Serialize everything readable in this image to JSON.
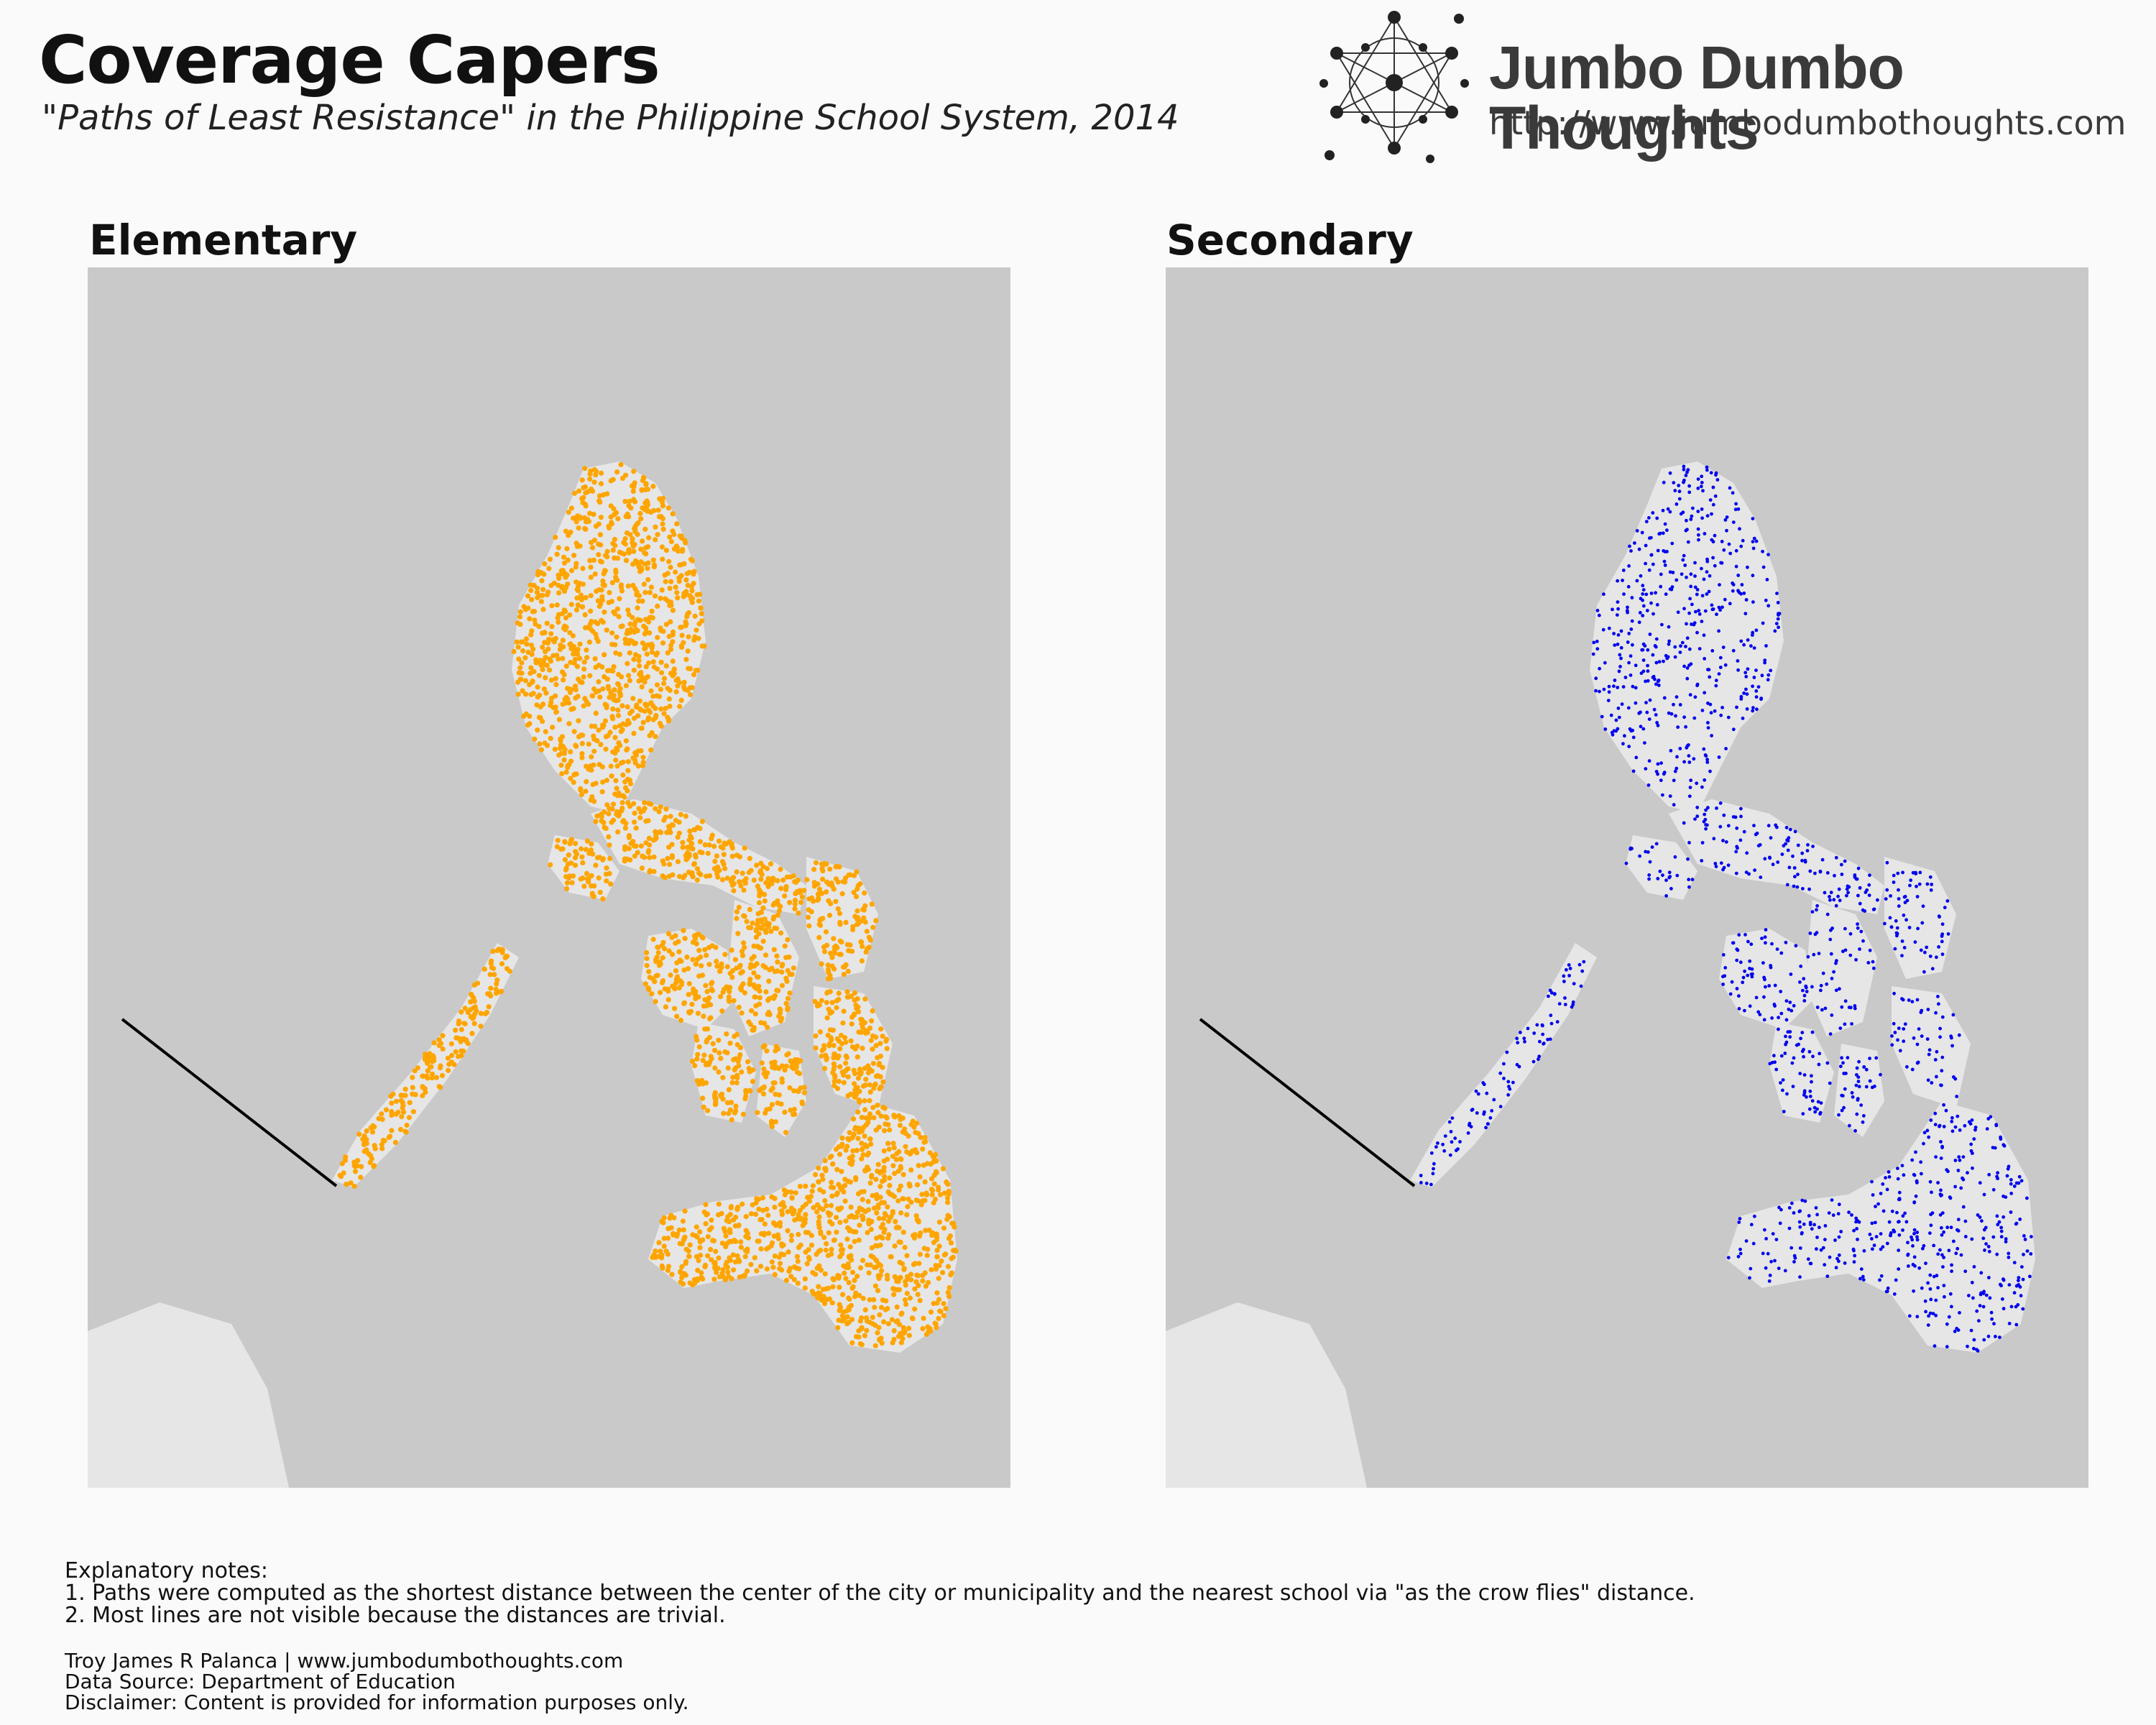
{
  "header": {
    "title": "Coverage Capers",
    "subtitle": "\"Paths of Least Resistance\" in the Philippine School System, 2014",
    "brand_name": "Jumbo Dumbo Thoughts",
    "brand_url": "http://www.jumbodumbothoughts.com"
  },
  "panels": [
    {
      "title": "Elementary",
      "dot_color": "#ffa500"
    },
    {
      "title": "Secondary",
      "dot_color": "#0000ee"
    }
  ],
  "colors": {
    "background": "#fafafa",
    "sea": "#c9c9c9",
    "land": "#e6e6e6",
    "path_line": "#000000"
  },
  "notes": {
    "heading": "Explanatory notes:",
    "items": [
      "1. Paths were computed as the shortest distance between the center of the city or municipality and the nearest school via \"as the crow flies\" distance.",
      "2. Most lines are not visible because the distances are trivial."
    ]
  },
  "credits": {
    "author": "Troy James R Palanca | www.jumbodumbothoughts.com",
    "source": "Data Source: Department of Education",
    "disclaimer": "Disclaimer: Content is provided for information purposes only."
  }
}
